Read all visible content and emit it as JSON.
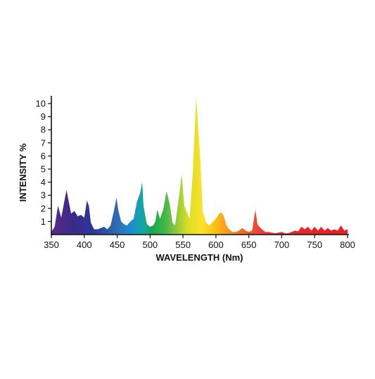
{
  "chart_data": {
    "type": "area",
    "title": "",
    "xlabel": "WAVELENGTH (Nm)",
    "ylabel": "INTENSITY %",
    "xlim": [
      350,
      800
    ],
    "ylim": [
      0,
      10.5
    ],
    "x_ticks": [
      "350",
      "400",
      "450",
      "500",
      "550",
      "600",
      "650",
      "700",
      "750",
      "800"
    ],
    "y_ticks": [
      "1",
      "2",
      "3",
      "4",
      "5",
      "6",
      "7",
      "8",
      "9",
      "10"
    ],
    "grid": false,
    "fill": "spectral gradient (violet to red)",
    "series": [
      {
        "x": [
          350,
          355,
          360,
          365,
          373,
          380,
          385,
          390,
          395,
          400,
          404,
          407,
          410,
          415,
          420,
          425,
          430,
          435,
          440,
          445,
          449,
          452,
          456,
          460,
          465,
          470,
          475,
          480,
          485,
          488,
          490,
          495,
          500,
          505,
          508,
          511,
          515,
          520,
          525,
          530,
          534,
          538,
          545,
          548,
          552,
          556,
          560,
          565,
          570,
          576,
          580,
          585,
          590,
          600,
          605,
          608,
          612,
          616,
          620,
          625,
          630,
          635,
          640,
          645,
          650,
          655,
          660,
          663,
          666,
          670,
          675,
          680,
          685,
          690,
          700,
          705,
          710,
          715,
          720,
          725,
          730,
          735,
          740,
          745,
          750,
          755,
          760,
          765,
          770,
          775,
          780,
          785,
          790,
          795,
          800
        ],
        "y": [
          0.2,
          0.6,
          2.2,
          1.3,
          3.4,
          1.6,
          1.8,
          1.4,
          1.5,
          1.3,
          2.6,
          2.2,
          0.9,
          0.4,
          0.4,
          0.5,
          0.6,
          0.4,
          0.7,
          1.8,
          2.8,
          1.8,
          1.0,
          0.8,
          0.7,
          1.0,
          1.2,
          2.5,
          3.2,
          4.0,
          2.2,
          0.8,
          0.6,
          0.7,
          1.0,
          1.9,
          1.2,
          1.9,
          3.3,
          2.3,
          0.9,
          0.7,
          3.3,
          4.6,
          2.2,
          1.7,
          1.2,
          4.8,
          10.5,
          6.0,
          1.8,
          0.9,
          0.7,
          1.2,
          1.6,
          1.7,
          1.4,
          0.7,
          0.4,
          0.2,
          0.2,
          0.3,
          0.5,
          0.3,
          0.2,
          0.3,
          1.9,
          0.8,
          0.6,
          0.4,
          0.2,
          0.2,
          0.15,
          0.1,
          0.2,
          0.1,
          0.1,
          0.2,
          0.3,
          0.25,
          0.6,
          0.4,
          0.6,
          0.3,
          0.6,
          0.3,
          0.6,
          0.3,
          0.5,
          0.3,
          0.4,
          0.3,
          0.7,
          0.3,
          0.4
        ]
      }
    ]
  }
}
